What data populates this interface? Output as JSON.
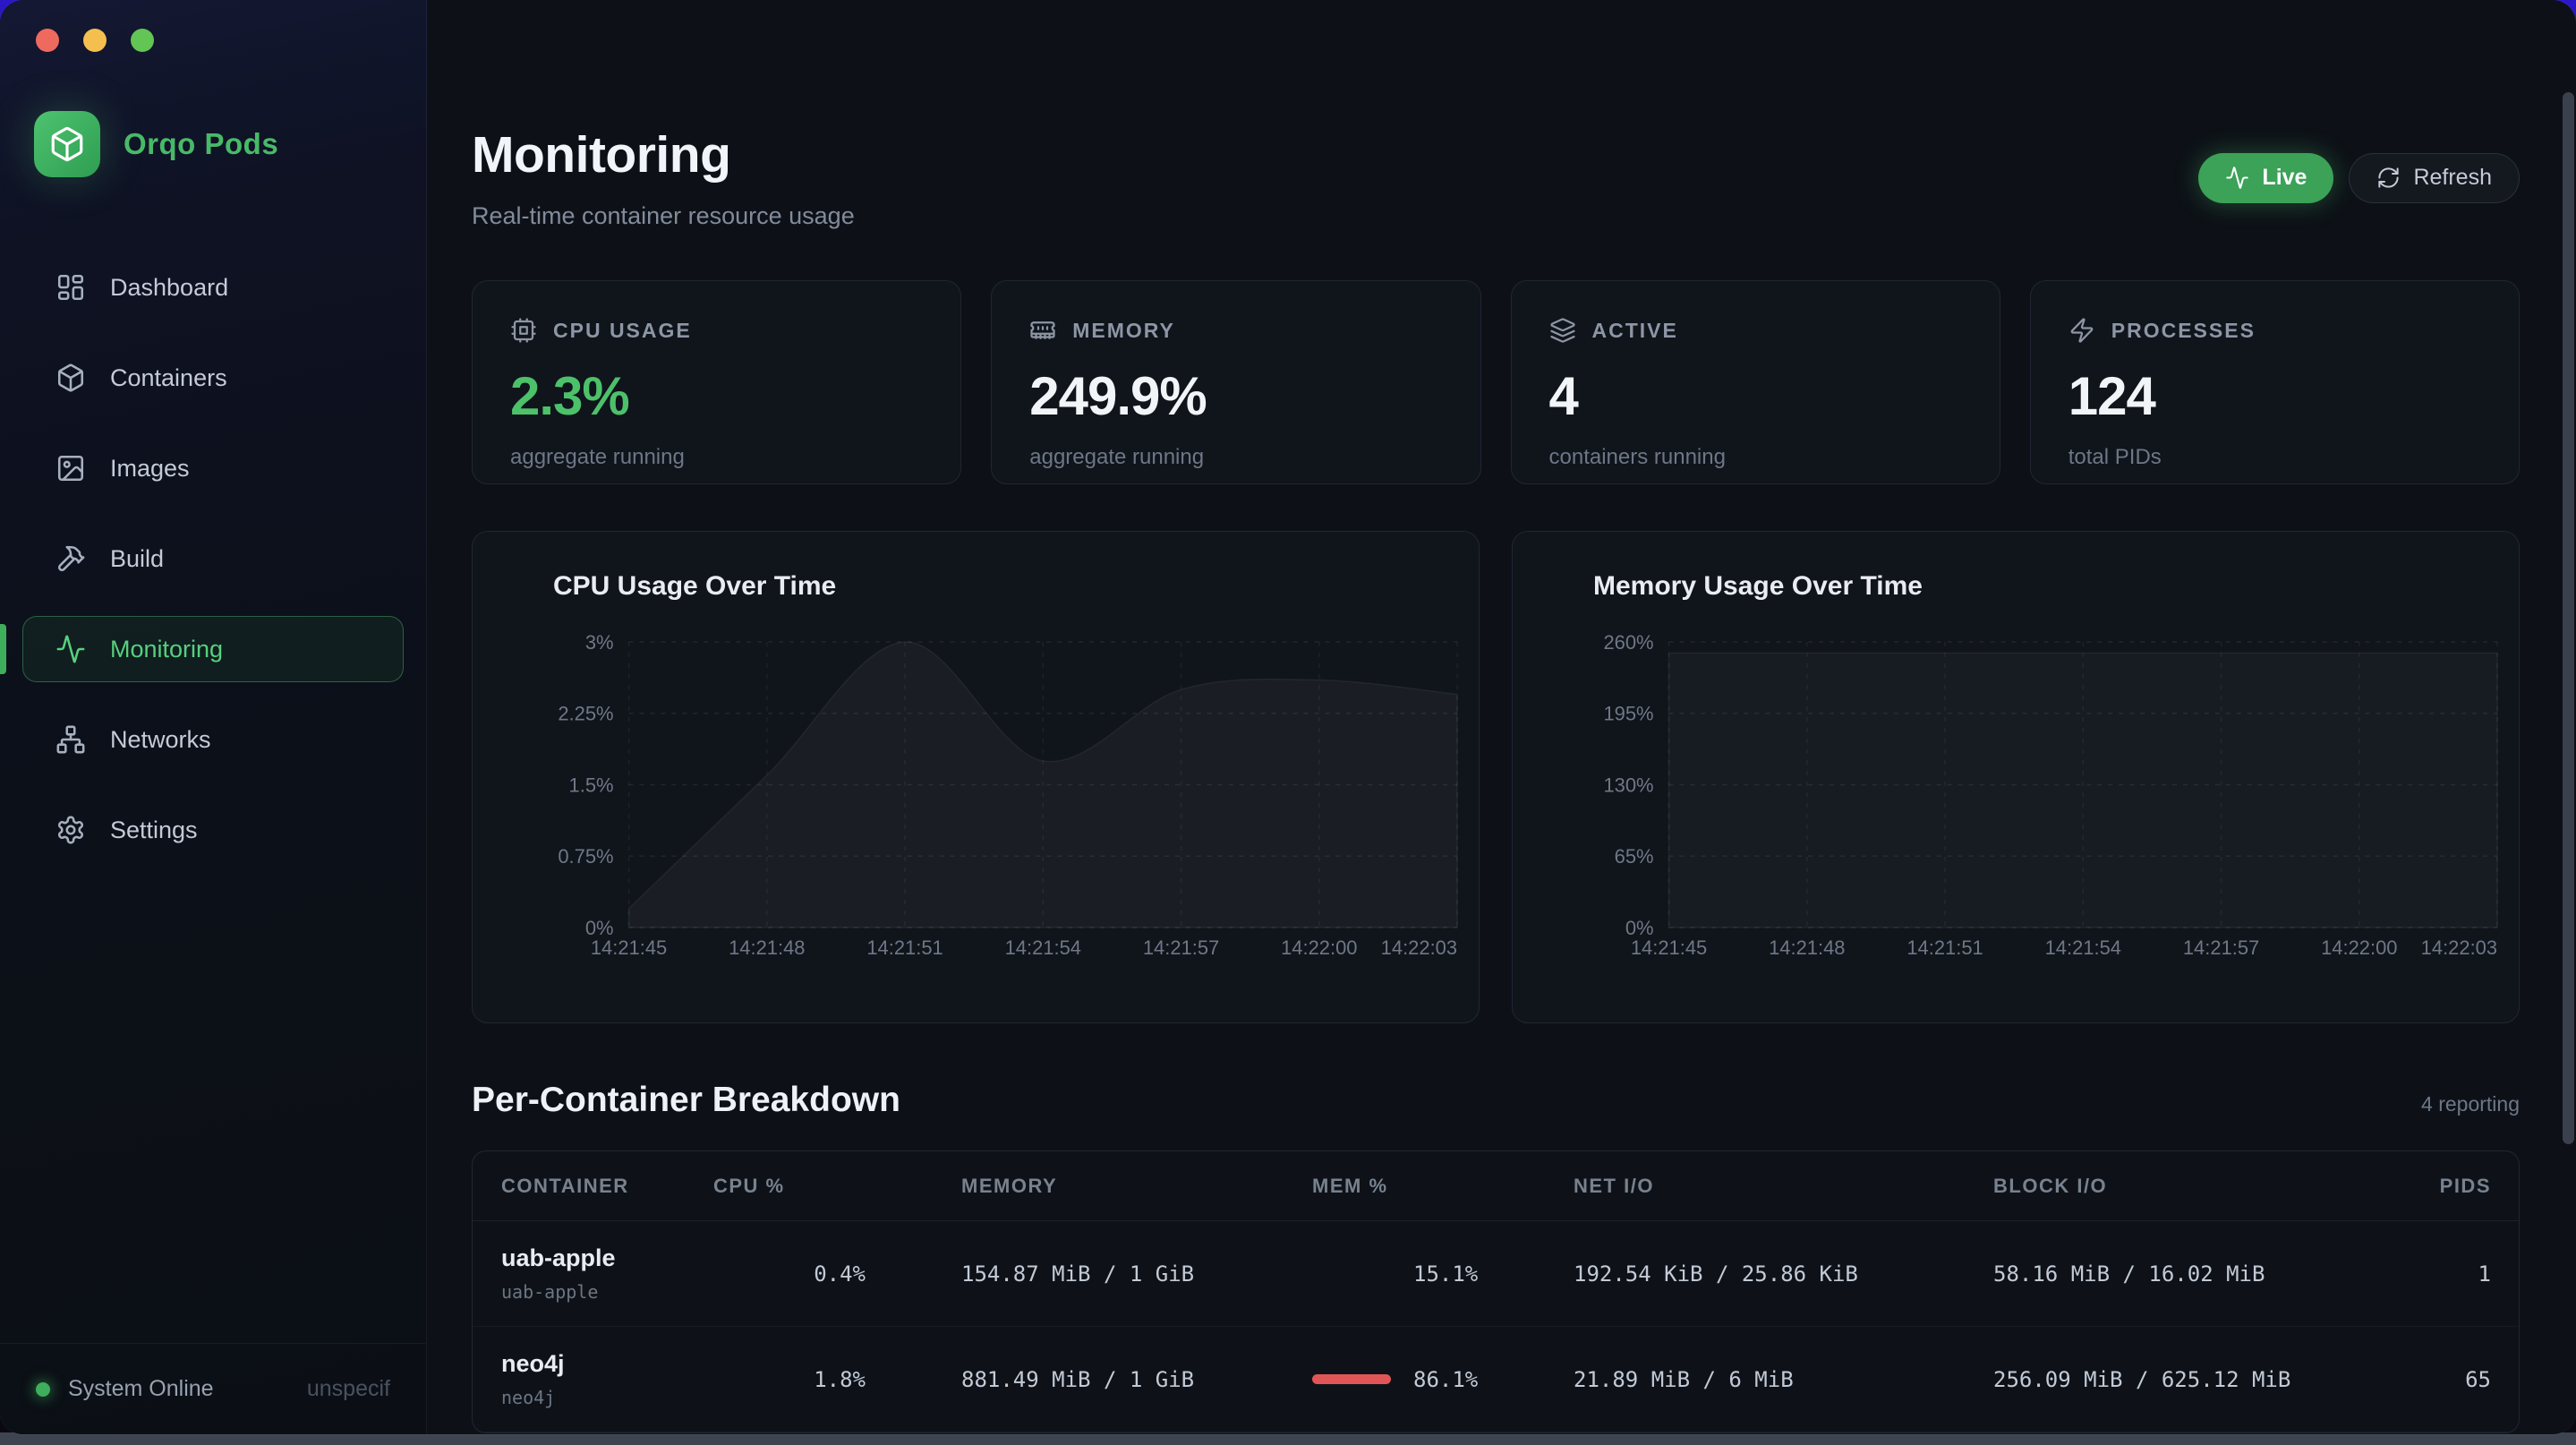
{
  "window": {
    "traffic_lights": [
      "#ee6a5f",
      "#f5bf4f",
      "#62c554"
    ]
  },
  "sidebar": {
    "brand": {
      "name": "Orqo Pods",
      "icon": "package-icon"
    },
    "items": [
      {
        "label": "Dashboard",
        "icon": "dashboard-icon",
        "active": false
      },
      {
        "label": "Containers",
        "icon": "containers-icon",
        "active": false
      },
      {
        "label": "Images",
        "icon": "images-icon",
        "active": false
      },
      {
        "label": "Build",
        "icon": "build-icon",
        "active": false
      },
      {
        "label": "Monitoring",
        "icon": "monitoring-icon",
        "active": true
      },
      {
        "label": "Networks",
        "icon": "networks-icon",
        "active": false
      },
      {
        "label": "Settings",
        "icon": "settings-icon",
        "active": false
      }
    ],
    "footer": {
      "status": "System Online",
      "right_text": "unspecif"
    }
  },
  "header": {
    "title": "Monitoring",
    "subtitle": "Real-time container resource usage",
    "live_label": "Live",
    "refresh_label": "Refresh"
  },
  "stats": [
    {
      "icon": "cpu-icon",
      "label": "CPU USAGE",
      "value": "2.3%",
      "caption": "aggregate running",
      "green": true
    },
    {
      "icon": "memory-icon",
      "label": "MEMORY",
      "value": "249.9%",
      "caption": "aggregate running",
      "green": false
    },
    {
      "icon": "layers-icon",
      "label": "ACTIVE",
      "value": "4",
      "caption": "containers running",
      "green": false
    },
    {
      "icon": "zap-icon",
      "label": "PROCESSES",
      "value": "124",
      "caption": "total PIDs",
      "green": false
    }
  ],
  "chart_data": [
    {
      "type": "area",
      "title": "CPU Usage Over Time",
      "name": "cpu-usage-chart",
      "x": [
        "14:21:45",
        "14:21:48",
        "14:21:51",
        "14:21:54",
        "14:21:57",
        "14:22:00",
        "14:22:03"
      ],
      "values": [
        0.2,
        1.6,
        3.0,
        1.75,
        2.5,
        2.6,
        2.45
      ],
      "ylim": [
        0,
        3
      ],
      "yticks": [
        0,
        0.75,
        1.5,
        2.25,
        3
      ],
      "ytick_labels": [
        "0%",
        "0.75%",
        "1.5%",
        "2.25%",
        "3%"
      ],
      "grid": true,
      "legend": false,
      "area_opacity": 0.045
    },
    {
      "type": "area",
      "title": "Memory Usage Over Time",
      "name": "memory-usage-chart",
      "x": [
        "14:21:45",
        "14:21:48",
        "14:21:51",
        "14:21:54",
        "14:21:57",
        "14:22:00",
        "14:22:03"
      ],
      "values": [
        249.9,
        249.9,
        249.9,
        249.9,
        249.9,
        249.9,
        249.9
      ],
      "ylim": [
        0,
        260
      ],
      "yticks": [
        0,
        65,
        130,
        195,
        260
      ],
      "ytick_labels": [
        "0%",
        "65%",
        "130%",
        "195%",
        "260%"
      ],
      "grid": true,
      "legend": false,
      "area_opacity": 0.03
    }
  ],
  "breakdown": {
    "title": "Per-Container Breakdown",
    "reporting": "4 reporting",
    "columns": [
      "CONTAINER",
      "CPU %",
      "MEMORY",
      "MEM %",
      "NET I/O",
      "BLOCK I/O",
      "PIDS"
    ],
    "rows": [
      {
        "name": "uab-apple",
        "id": "uab-apple",
        "cpu": "0.4%",
        "memory": "154.87 MiB / 1 GiB",
        "mem_pct": "15.1%",
        "mem_bar": false,
        "net": "192.54 KiB / 25.86 KiB",
        "block": "58.16 MiB / 16.02 MiB",
        "pids": "1"
      },
      {
        "name": "neo4j",
        "id": "neo4j",
        "cpu": "1.8%",
        "memory": "881.49 MiB / 1 GiB",
        "mem_pct": "86.1%",
        "mem_bar": true,
        "net": "21.89 MiB / 6 MiB",
        "block": "256.09 MiB / 625.12 MiB",
        "pids": "65"
      }
    ]
  },
  "colors": {
    "accent_green": "#3fae5c",
    "live_button_green": "#3ba257",
    "stat_value_green": "#4cc16a",
    "mem_bar_red": "#e05656",
    "desktop_purple": "#2a18c8"
  }
}
